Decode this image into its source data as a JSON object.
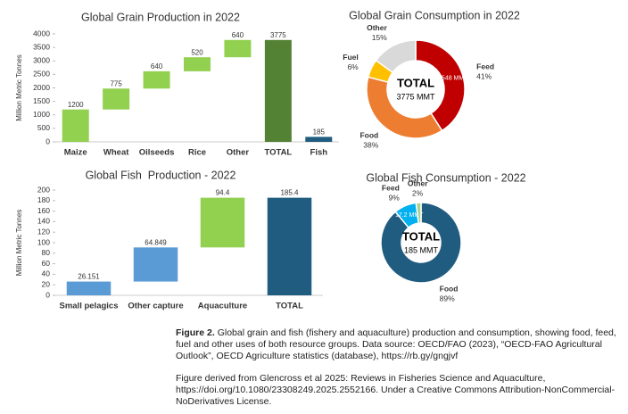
{
  "chart_data": [
    {
      "type": "waterfall",
      "title": "Global Grain Production in 2022",
      "ylabel": "Million Metric Tonnes",
      "categories": [
        "Maize",
        "Wheat",
        "Oilseeds",
        "Rice",
        "Other",
        "TOTAL",
        "Fish"
      ],
      "values": [
        1200,
        775,
        640,
        520,
        640,
        3775,
        185
      ],
      "measure": [
        "relative",
        "relative",
        "relative",
        "relative",
        "relative",
        "absolute",
        "absolute"
      ],
      "colors": [
        "#92d050",
        "#92d050",
        "#92d050",
        "#92d050",
        "#92d050",
        "#548235",
        "#1f5c7f"
      ],
      "ylim": [
        0,
        4000
      ],
      "yticks": [
        0,
        500,
        1000,
        1500,
        2000,
        2500,
        3000,
        3500,
        4000
      ]
    },
    {
      "type": "donut",
      "title": "Global Grain Consumption in 2022",
      "categories": [
        "Feed",
        "Food",
        "Fuel",
        "Other"
      ],
      "values": [
        41,
        38,
        6,
        15
      ],
      "value_labels": [
        "41%",
        "38%",
        "6%",
        "15%"
      ],
      "colors": [
        "#c00000",
        "#ed7d31",
        "#ffc000",
        "#d9d9d9"
      ],
      "inner_labels": [
        "1548 MMT",
        null,
        null,
        null
      ],
      "center_label": "TOTAL",
      "center_sublabel": "3775 MMT"
    },
    {
      "type": "waterfall",
      "title": "Global Fish  Production - 2022",
      "ylabel": "Million Metric Tonnes",
      "categories": [
        "Small pelagics",
        "Other capture",
        "Aquaculture",
        "TOTAL"
      ],
      "values": [
        26.151,
        64.849,
        94.4,
        185.4
      ],
      "measure": [
        "relative",
        "relative",
        "relative",
        "absolute"
      ],
      "colors": [
        "#5b9bd5",
        "#5b9bd5",
        "#92d050",
        "#1f5c7f"
      ],
      "ylim": [
        0,
        200
      ],
      "yticks": [
        0,
        20,
        40,
        60,
        80,
        100,
        120,
        140,
        160,
        180,
        200
      ]
    },
    {
      "type": "donut",
      "title": "Global Fish Consumption - 2022",
      "categories": [
        "Food",
        "Feed",
        "Other"
      ],
      "values": [
        89,
        9,
        2
      ],
      "value_labels": [
        "89%",
        "9%",
        "2%"
      ],
      "colors": [
        "#1f5c7f",
        "#00b0f0",
        "#a9d18e"
      ],
      "inner_labels": [
        null,
        "17.2 MMT",
        null
      ],
      "center_label": "TOTAL",
      "center_sublabel": "185 MMT"
    }
  ],
  "caption": {
    "label": "Figure 2.",
    "text": "Global grain and fish (fishery and aquaculture) production and consumption, showing food, feed, fuel and other uses of both resource groups. Data source: OECD/FAO (2023), “OECD-FAO Agricultural Outlook”, OECD Agriculture statistics (database), https://rb.gy/gngjvf",
    "credit": "Figure derived from Glencross et al 2025: Reviews in Fisheries Science and Aquaculture, https://doi.org/10.1080/23308249.2025.2552166. Under a Creative Commons Attribution-NonCommercial-NoDerivatives License."
  }
}
